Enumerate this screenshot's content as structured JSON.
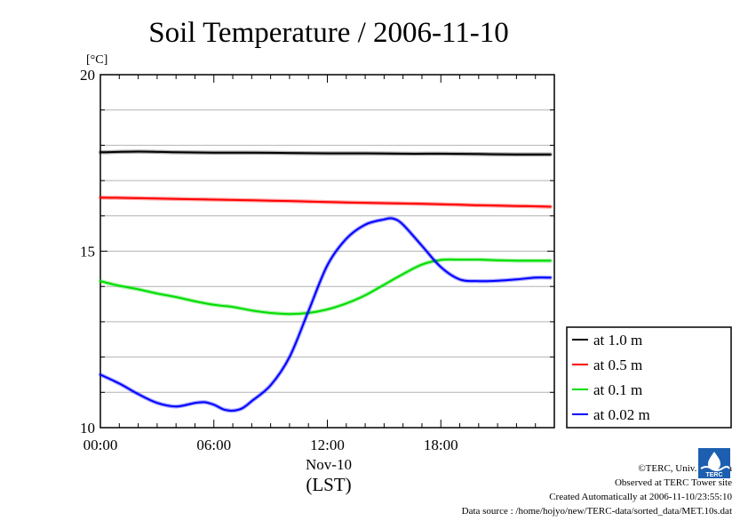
{
  "chart_data": {
    "type": "line",
    "title": "Soil Temperature / 2006-11-10",
    "ylabel": "[°C]",
    "ylim": [
      10,
      20
    ],
    "yticks": [
      10,
      15,
      20
    ],
    "xlim": [
      0,
      24
    ],
    "xticks": [
      {
        "value": 0,
        "label": "00:00"
      },
      {
        "value": 6,
        "label": "06:00"
      },
      {
        "value": 12,
        "label": "12:00"
      },
      {
        "value": 18,
        "label": "18:00"
      }
    ],
    "xlabel_date": "Nov-10",
    "xlabel": "(LST)",
    "grid": true,
    "legend_position": "right",
    "series": [
      {
        "name": "at 1.0 m",
        "color": "#000000",
        "x": [
          0,
          2,
          4,
          6,
          8,
          10,
          12,
          14,
          16,
          18,
          20,
          22,
          23.8
        ],
        "y": [
          17.8,
          17.82,
          17.8,
          17.79,
          17.79,
          17.78,
          17.77,
          17.77,
          17.76,
          17.76,
          17.75,
          17.74,
          17.74
        ]
      },
      {
        "name": "at 0.5 m",
        "color": "#ff0000",
        "x": [
          0,
          2,
          4,
          6,
          8,
          10,
          12,
          14,
          16,
          18,
          20,
          22,
          23.8
        ],
        "y": [
          16.52,
          16.5,
          16.48,
          16.46,
          16.44,
          16.42,
          16.39,
          16.37,
          16.35,
          16.33,
          16.3,
          16.28,
          16.26
        ]
      },
      {
        "name": "at 0.1 m",
        "color": "#00dd00",
        "x": [
          0,
          1,
          2,
          3,
          4,
          5,
          6,
          7,
          8,
          9,
          10,
          11,
          12,
          13,
          14,
          15,
          16,
          17,
          18,
          19,
          20,
          21,
          22,
          23,
          23.8
        ],
        "y": [
          14.15,
          14.02,
          13.92,
          13.8,
          13.7,
          13.58,
          13.48,
          13.42,
          13.32,
          13.25,
          13.22,
          13.25,
          13.35,
          13.52,
          13.75,
          14.05,
          14.35,
          14.62,
          14.75,
          14.76,
          14.76,
          14.74,
          14.73,
          14.73,
          14.73
        ]
      },
      {
        "name": "at 0.02 m",
        "color": "#0000ff",
        "x": [
          0,
          1,
          2,
          3,
          4,
          5,
          5.5,
          6,
          6.5,
          7,
          7.5,
          8,
          9,
          10,
          11,
          12,
          13,
          14,
          15,
          15.5,
          16,
          17,
          18,
          19,
          20,
          21,
          22,
          23,
          23.8
        ],
        "y": [
          11.5,
          11.25,
          10.95,
          10.7,
          10.6,
          10.7,
          10.72,
          10.65,
          10.52,
          10.48,
          10.55,
          10.75,
          11.2,
          12.0,
          13.3,
          14.6,
          15.35,
          15.75,
          15.9,
          15.92,
          15.75,
          15.15,
          14.55,
          14.2,
          14.15,
          14.16,
          14.2,
          14.25,
          14.25
        ]
      }
    ]
  },
  "credits": {
    "line1": "©TERC, Univ. Tsukuba",
    "line2": "Observed at TERC Tower site",
    "line3": "Created Automatically at 2006-11-10/23:55:10",
    "line4": "Data source : /home/hojyo/new/TERC-data/sorted_data/MET.10s.dat"
  },
  "logo": {
    "text": "TERC",
    "icon": "terc-logo-icon",
    "color": "#1c5fb0"
  }
}
